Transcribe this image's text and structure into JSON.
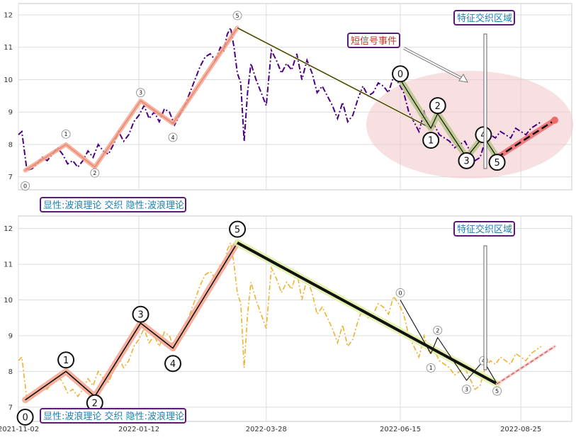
{
  "chart_data": [
    {
      "type": "line",
      "x_range": [
        "2021-11-02",
        "2022-09-24"
      ],
      "ylim": [
        6.6,
        12.35
      ],
      "yticks": [
        7,
        8,
        9,
        10,
        11,
        12
      ],
      "grid": true,
      "series": [
        {
          "color": "#4b0082",
          "style": "dashdot",
          "x": [
            "2021-11-02",
            "2021-11-04",
            "2021-11-07",
            "2021-11-10",
            "2021-11-13",
            "2021-11-16",
            "2021-11-19",
            "2021-11-22",
            "2021-11-25",
            "2021-11-28",
            "2021-12-01",
            "2021-12-04",
            "2021-12-07",
            "2021-12-10",
            "2021-12-13",
            "2021-12-16",
            "2021-12-19",
            "2021-12-22",
            "2021-12-25",
            "2021-12-28",
            "2021-12-31",
            "2022-01-03",
            "2022-01-06",
            "2022-01-09",
            "2022-01-12",
            "2022-01-15",
            "2022-01-18",
            "2022-01-21",
            "2022-01-24",
            "2022-01-27",
            "2022-01-30",
            "2022-02-02",
            "2022-02-05",
            "2022-02-08",
            "2022-02-11",
            "2022-02-14",
            "2022-02-17",
            "2022-02-20",
            "2022-02-23",
            "2022-02-26",
            "2022-03-01",
            "2022-03-03",
            "2022-03-05",
            "2022-03-07",
            "2022-03-09",
            "2022-03-11",
            "2022-03-13",
            "2022-03-15",
            "2022-03-17",
            "2022-03-19",
            "2022-03-22",
            "2022-03-25",
            "2022-03-28",
            "2022-03-31",
            "2022-04-03",
            "2022-04-06",
            "2022-04-09",
            "2022-04-12",
            "2022-04-15",
            "2022-04-18",
            "2022-04-21",
            "2022-04-24",
            "2022-04-27",
            "2022-04-30",
            "2022-05-03",
            "2022-05-06",
            "2022-05-09",
            "2022-05-12",
            "2022-05-15",
            "2022-05-18",
            "2022-05-21",
            "2022-05-24",
            "2022-05-27",
            "2022-05-30",
            "2022-06-02",
            "2022-06-05",
            "2022-06-08",
            "2022-06-11",
            "2022-06-14",
            "2022-06-17",
            "2022-06-20",
            "2022-06-23",
            "2022-06-26",
            "2022-06-29",
            "2022-07-02",
            "2022-07-05",
            "2022-07-08",
            "2022-07-11",
            "2022-07-14",
            "2022-07-17",
            "2022-07-20",
            "2022-07-23",
            "2022-07-26",
            "2022-07-29",
            "2022-08-01",
            "2022-08-04",
            "2022-08-07",
            "2022-08-10",
            "2022-08-13",
            "2022-08-16",
            "2022-08-19",
            "2022-08-22",
            "2022-08-25",
            "2022-08-28",
            "2022-08-31",
            "2022-09-03",
            "2022-09-06"
          ],
          "y": [
            8.3,
            8.4,
            7.2,
            7.25,
            7.4,
            7.6,
            7.5,
            7.7,
            7.9,
            7.7,
            7.4,
            7.5,
            7.3,
            7.5,
            7.8,
            7.6,
            8.0,
            7.8,
            7.7,
            8.0,
            8.4,
            8.1,
            8.3,
            8.7,
            8.9,
            9.2,
            8.8,
            9.0,
            8.7,
            9.1,
            9.0,
            8.6,
            8.9,
            9.2,
            9.6,
            10.0,
            10.4,
            10.7,
            10.8,
            10.6,
            11.0,
            10.9,
            11.4,
            11.6,
            11.0,
            10.2,
            9.9,
            8.1,
            9.6,
            10.5,
            10.0,
            9.6,
            9.2,
            10.9,
            10.6,
            10.2,
            10.5,
            10.3,
            10.8,
            10.0,
            10.6,
            10.2,
            9.6,
            9.8,
            9.5,
            9.2,
            8.8,
            9.3,
            8.7,
            8.9,
            9.4,
            9.8,
            9.5,
            9.6,
            9.9,
            9.8,
            9.6,
            10.1,
            9.9,
            9.6,
            9.0,
            8.7,
            8.4,
            9.0,
            8.5,
            8.6,
            8.3,
            8.2,
            8.1,
            7.9,
            8.0,
            8.1,
            7.8,
            7.5,
            7.6,
            8.1,
            8.3,
            8.2,
            8.4,
            8.3,
            8.2,
            8.5,
            8.4,
            8.3,
            8.5,
            8.6,
            8.7
          ]
        }
      ],
      "wave_lines": [
        {
          "color": "#e8826a",
          "x": [
            "2021-11-06",
            "2021-11-30",
            "2021-12-17",
            "2022-01-13",
            "2022-02-01",
            "2022-03-11"
          ],
          "y": [
            7.2,
            8.0,
            7.3,
            9.35,
            8.65,
            11.6
          ]
        },
        {
          "color": "#1b2b10",
          "x": [
            "2022-03-11",
            "2022-07-03"
          ],
          "y": [
            11.6,
            8.5
          ]
        },
        {
          "color": "#1b2b10",
          "x": [
            "2022-06-15",
            "2022-07-03",
            "2022-07-07",
            "2022-07-24",
            "2022-08-03",
            "2022-08-11"
          ],
          "y": [
            10.0,
            8.5,
            8.95,
            7.6,
            8.25,
            7.6
          ]
        },
        {
          "color": "#e8826a",
          "x": [
            "2022-08-11",
            "2022-09-14"
          ],
          "y": [
            7.6,
            8.75
          ]
        }
      ],
      "wave_labels": [
        {
          "text": "0",
          "x": "2021-11-06",
          "y": 6.72
        },
        {
          "text": "1",
          "x": "2021-11-30",
          "y": 8.32
        },
        {
          "text": "2",
          "x": "2021-12-17",
          "y": 7.12
        },
        {
          "text": "3",
          "x": "2022-01-13",
          "y": 9.6
        },
        {
          "text": "4",
          "x": "2022-02-01",
          "y": 8.22
        },
        {
          "text": "5",
          "x": "2022-03-11",
          "y": 11.98
        },
        {
          "text": "0",
          "x": "2022-06-15",
          "y": 10.18
        },
        {
          "text": "1",
          "x": "2022-07-03",
          "y": 8.13
        },
        {
          "text": "2",
          "x": "2022-07-07",
          "y": 9.2
        },
        {
          "text": "3",
          "x": "2022-07-24",
          "y": 7.5
        },
        {
          "text": "4",
          "x": "2022-08-03",
          "y": 8.3
        },
        {
          "text": "5",
          "x": "2022-08-11",
          "y": 7.45
        }
      ],
      "annotations": {
        "box_left": "显性:波浪理论 交织 隐性:波浪理论",
        "box_region": "特征交织区域",
        "box_signal": "短信号事件"
      }
    },
    {
      "type": "line",
      "x_range": [
        "2021-11-02",
        "2022-09-24"
      ],
      "ylim": [
        6.6,
        12.35
      ],
      "yticks": [
        7,
        8,
        9,
        10,
        11,
        12
      ],
      "xticks": [
        "2021-11-02",
        "2022-01-12",
        "2022-03-28",
        "2022-06-15",
        "2022-08-25"
      ],
      "grid": true,
      "series": [
        {
          "color": "#f0b030",
          "style": "dashdot",
          "same_as_first_series": true
        }
      ],
      "wave_lines": [
        {
          "color": "#111111",
          "x": [
            "2021-11-06",
            "2021-11-30",
            "2021-12-17",
            "2022-01-13",
            "2022-02-01",
            "2022-03-11"
          ],
          "y": [
            7.2,
            8.0,
            7.3,
            9.35,
            8.65,
            11.6
          ]
        },
        {
          "color": "#111111",
          "x": [
            "2022-03-11",
            "2022-08-11"
          ],
          "y": [
            11.6,
            7.65
          ]
        },
        {
          "color": "#111111",
          "x": [
            "2022-06-15",
            "2022-07-03",
            "2022-07-07",
            "2022-07-24",
            "2022-08-03",
            "2022-08-11"
          ],
          "y": [
            10.0,
            8.5,
            8.95,
            7.75,
            8.3,
            7.65
          ]
        },
        {
          "color": "#c05050",
          "x": [
            "2022-08-11",
            "2022-09-14"
          ],
          "y": [
            7.65,
            8.7
          ]
        }
      ],
      "wave_labels": [
        {
          "text": "0",
          "x": "2021-11-06",
          "y": 6.72
        },
        {
          "text": "1",
          "x": "2021-11-30",
          "y": 8.32
        },
        {
          "text": "2",
          "x": "2021-12-17",
          "y": 7.12
        },
        {
          "text": "3",
          "x": "2022-01-13",
          "y": 9.6
        },
        {
          "text": "4",
          "x": "2022-02-01",
          "y": 8.22
        },
        {
          "text": "5",
          "x": "2022-03-11",
          "y": 11.98
        },
        {
          "text": "0",
          "x": "2022-06-15",
          "y": 10.2
        },
        {
          "text": "1",
          "x": "2022-07-03",
          "y": 8.1
        },
        {
          "text": "2",
          "x": "2022-07-07",
          "y": 9.15
        },
        {
          "text": "3",
          "x": "2022-07-24",
          "y": 7.5
        },
        {
          "text": "4",
          "x": "2022-08-03",
          "y": 8.3
        },
        {
          "text": "5",
          "x": "2022-08-11",
          "y": 7.45
        }
      ],
      "annotations": {
        "box_left": "显性:波浪理论 交织 隐性:波浪理论",
        "box_region": "特征交织区域"
      }
    }
  ]
}
